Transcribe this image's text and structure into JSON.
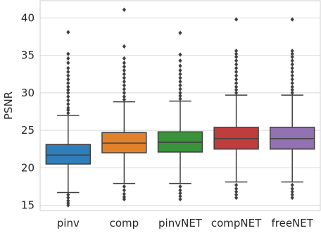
{
  "chart_data": {
    "type": "box",
    "ylabel": "PSNR",
    "xlabel": "",
    "ylim": [
      14.3,
      42.3
    ],
    "yticks": [
      15,
      20,
      25,
      30,
      35,
      40
    ],
    "grid": "horizontal",
    "series": [
      {
        "name": "pinv",
        "color": "#2f7ebc",
        "q1": 20.5,
        "median": 21.7,
        "q3": 23.1,
        "whisker_low": 16.7,
        "whisker_high": 27.0,
        "outliers_high": [
          27.3,
          27.7,
          28.0,
          28.5,
          29.0,
          29.5,
          30.0,
          30.4,
          30.8,
          31.3,
          31.8,
          32.3,
          32.8,
          33.3,
          34.0,
          34.6,
          35.2,
          38.1
        ],
        "outliers_low": [
          16.4,
          16.0,
          15.6,
          15.3,
          15.0
        ]
      },
      {
        "name": "comp",
        "color": "#e1812c",
        "q1": 22.0,
        "median": 23.3,
        "q3": 24.7,
        "whisker_low": 17.9,
        "whisker_high": 28.8,
        "outliers_high": [
          29.1,
          29.5,
          30.0,
          30.5,
          31.0,
          31.5,
          32.0,
          32.5,
          33.0,
          33.5,
          34.0,
          34.6,
          36.2,
          41.1
        ],
        "outliers_low": [
          17.5,
          17.0,
          16.5,
          16.1,
          15.8
        ]
      },
      {
        "name": "pinvNET",
        "color": "#3a923a",
        "q1": 22.1,
        "median": 23.4,
        "q3": 24.8,
        "whisker_low": 17.9,
        "whisker_high": 28.9,
        "outliers_high": [
          29.2,
          29.6,
          30.0,
          30.5,
          31.0,
          31.5,
          32.0,
          32.5,
          33.0,
          33.6,
          34.3,
          35.1,
          38.0
        ],
        "outliers_low": [
          17.5,
          17.0,
          16.6,
          16.2,
          15.8
        ]
      },
      {
        "name": "compNET",
        "color": "#c03d3e",
        "q1": 22.5,
        "median": 23.9,
        "q3": 25.4,
        "whisker_low": 18.1,
        "whisker_high": 29.7,
        "outliers_high": [
          30.0,
          30.4,
          30.8,
          31.3,
          31.8,
          32.3,
          32.8,
          33.3,
          33.8,
          34.3,
          34.8,
          35.2,
          35.6,
          39.8
        ],
        "outliers_low": [
          17.7,
          17.2,
          16.8,
          16.4,
          16.0
        ]
      },
      {
        "name": "freeNET",
        "color": "#9372b2",
        "q1": 22.5,
        "median": 23.9,
        "q3": 25.4,
        "whisker_low": 18.1,
        "whisker_high": 29.7,
        "outliers_high": [
          30.0,
          30.4,
          30.8,
          31.3,
          31.8,
          32.3,
          32.8,
          33.3,
          33.8,
          34.3,
          34.8,
          35.2,
          35.6,
          39.8
        ],
        "outliers_low": [
          17.7,
          17.2,
          16.8,
          16.4,
          16.0
        ]
      }
    ]
  }
}
